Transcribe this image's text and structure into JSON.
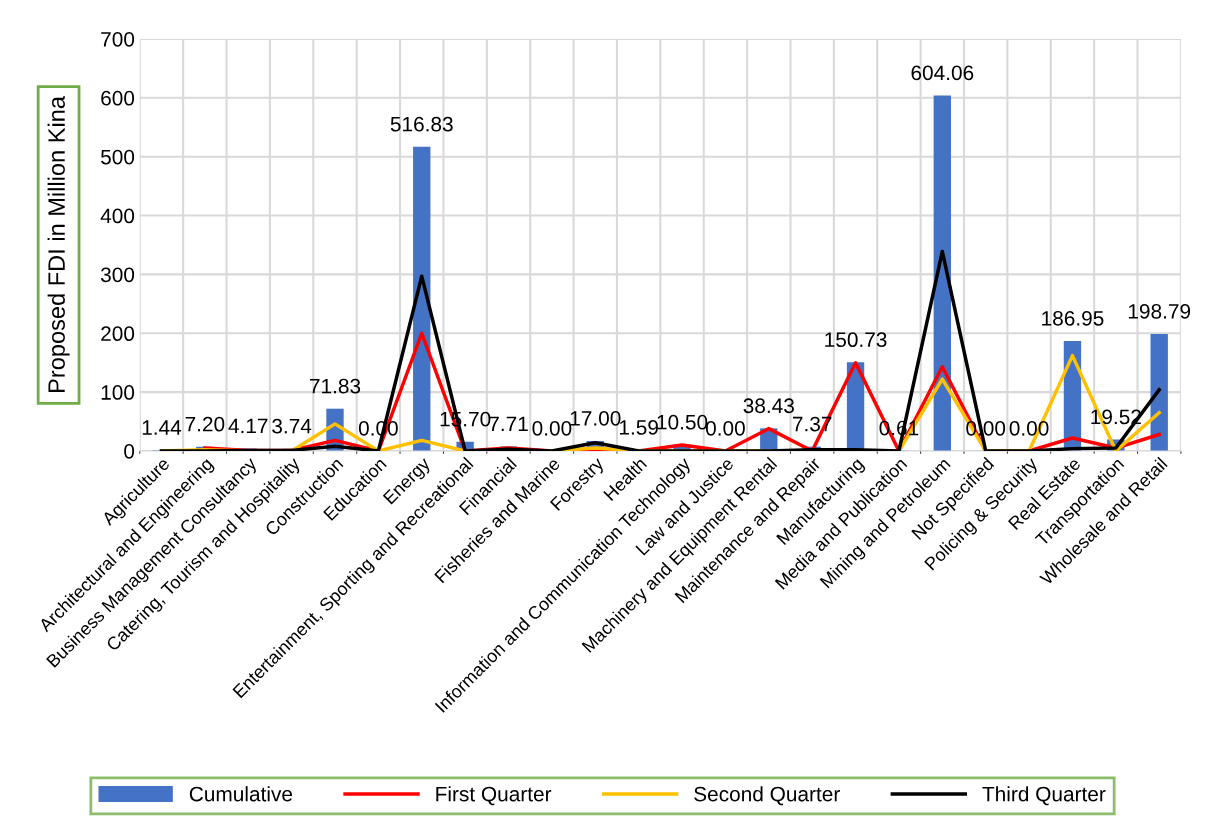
{
  "chart_data": {
    "type": "bar",
    "ylabel": "Proposed FDI in Million Kina",
    "categories": [
      "Agriculture",
      "Architectural and Engineering",
      "Business Management Consultancy",
      "Catering, Tourism and Hospitality",
      "Construction",
      "Education",
      "Energy",
      "Entertainment, Sporting and Recreational",
      "Financial",
      "Fisheries and Marine",
      "Forestry",
      "Health",
      "Information and Communication Technology",
      "Law and Justice",
      "Machinery and Equipment Rental",
      "Maintenance and Repair",
      "Manufacturing",
      "Media and Publication",
      "Mining and Petroleum",
      "Not Specified",
      "Policing & Security",
      "Real Estate",
      "Transportation",
      "Wholesale and Retail"
    ],
    "series": [
      {
        "name": "Cumulative",
        "color": "#4472c4",
        "values": [
          1.44,
          7.2,
          4.17,
          3.74,
          71.83,
          0.0,
          516.83,
          15.7,
          7.71,
          0.0,
          17.0,
          1.59,
          10.5,
          0.0,
          38.43,
          7.37,
          150.73,
          0.61,
          604.06,
          0.0,
          0.0,
          186.95,
          19.52,
          198.79
        ],
        "value_labels": [
          "1.44",
          "7.20",
          "4.17",
          "3.74",
          "71.83",
          "0.00",
          "516.83",
          "15.70",
          "7.71",
          "0.00",
          "17.00",
          "1.59",
          "10.50",
          "0.00",
          "38.43",
          "7.37",
          "150.73",
          "0.61",
          "604.06",
          "0.00",
          "0.00",
          "186.95",
          "19.52",
          "198.79"
        ]
      },
      {
        "name": "First Quarter",
        "type": "line",
        "color": "#ff0000",
        "values": [
          null,
          5,
          1,
          1,
          18,
          0,
          200,
          0,
          5,
          0,
          2,
          0,
          10,
          0,
          38,
          0,
          150,
          0,
          143,
          0,
          0,
          22,
          5,
          28
        ]
      },
      {
        "name": "Second Quarter",
        "type": "line",
        "color": "#ffc000",
        "values": [
          0,
          2,
          0,
          0,
          46,
          0,
          18,
          0,
          0,
          0,
          5,
          0,
          0,
          0,
          0,
          0,
          0,
          0,
          122,
          0,
          0,
          162,
          0,
          65
        ]
      },
      {
        "name": "Third Quarter",
        "type": "line",
        "color": "#000000",
        "values": [
          0,
          0,
          1,
          1,
          8,
          0,
          297,
          0,
          3,
          0,
          14,
          0,
          0,
          0,
          0,
          2,
          2,
          0,
          339,
          0,
          0,
          4,
          5,
          104
        ]
      }
    ],
    "ylim": [
      0,
      700
    ],
    "yticks": [
      0,
      100,
      200,
      300,
      400,
      500,
      600,
      700
    ],
    "grid": true,
    "legend": "bottom",
    "marker": "none",
    "line_style": "solid"
  }
}
